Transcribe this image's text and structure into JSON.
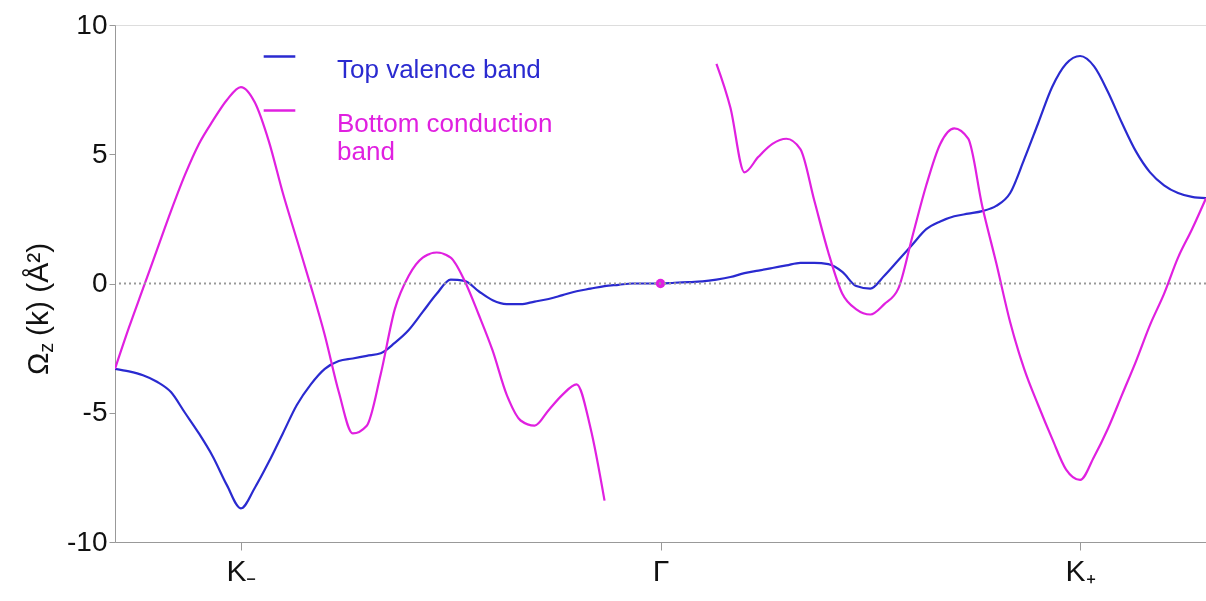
{
  "chart_data": {
    "type": "line",
    "ylabel": "Ω$_{z}$(k) (Å²)",
    "categories": [
      null,
      null,
      null,
      null,
      null,
      null,
      null,
      null,
      null,
      "K₋",
      null,
      null,
      null,
      null,
      null,
      null,
      null,
      null,
      null,
      null,
      null,
      null,
      null,
      null,
      null,
      null,
      null,
      null,
      null,
      null,
      null,
      null,
      null,
      null,
      null,
      null,
      null,
      null,
      null,
      "Γ",
      null,
      null,
      null,
      null,
      null,
      null,
      null,
      null,
      null,
      null,
      null,
      null,
      null,
      null,
      null,
      null,
      null,
      null,
      null,
      null,
      null,
      null,
      null,
      null,
      null,
      null,
      null,
      null,
      null,
      "K₊",
      null,
      null,
      null,
      null,
      null,
      null,
      null,
      null,
      null
    ],
    "ylim": [
      -10,
      10
    ],
    "yticks": [
      -10,
      -5,
      0,
      5,
      10
    ],
    "grid": false,
    "legend": "top left",
    "marker": "none",
    "line_style": "solid",
    "ref_lines": [
      {
        "axis": "y",
        "value": 0,
        "color": "#999999",
        "line_style": "dotted"
      }
    ],
    "series": [
      {
        "name": "Top valence band",
        "color": "#2a2ad0",
        "values": [
          -3.3,
          -3.4,
          -3.55,
          -3.8,
          -4.2,
          -5.0,
          -5.8,
          -6.7,
          -7.8,
          -8.7,
          -7.9,
          -6.9,
          -5.8,
          -4.7,
          -3.9,
          -3.3,
          -3.0,
          -2.9,
          -2.8,
          -2.7,
          -2.3,
          -1.8,
          -1.1,
          -0.4,
          0.15,
          0.1,
          -0.3,
          -0.65,
          -0.8,
          -0.8,
          -0.7,
          -0.6,
          -0.45,
          -0.3,
          -0.2,
          -0.1,
          -0.05,
          0,
          0,
          0,
          0.03,
          0.05,
          0.08,
          0.15,
          0.25,
          0.4,
          0.5,
          0.6,
          0.7,
          0.8,
          0.8,
          0.75,
          0.45,
          -0.1,
          -0.2,
          0.3,
          0.9,
          1.5,
          2.1,
          2.4,
          2.6,
          2.7,
          2.8,
          3.0,
          3.5,
          4.8,
          6.2,
          7.6,
          8.5,
          8.8,
          8.4,
          7.4,
          6.2,
          5.1,
          4.3,
          3.8,
          3.5,
          3.35,
          3.3
        ]
      },
      {
        "name": "Bottom conduction band",
        "color": "#e020e0",
        "values": [
          -3.3,
          -1.7,
          -0.2,
          1.3,
          2.8,
          4.2,
          5.4,
          6.3,
          7.1,
          7.6,
          7.0,
          5.5,
          3.5,
          1.7,
          -0.1,
          -2.0,
          -4.2,
          -5.8,
          -5.5,
          -3.5,
          -1.0,
          0.3,
          1.0,
          1.2,
          1.0,
          0.1,
          -1.2,
          -2.6,
          -4.3,
          -5.3,
          -5.5,
          -4.9,
          -4.3,
          -3.9,
          -5.6,
          -8.4,
          null,
          null,
          null,
          0,
          null,
          null,
          null,
          8.5,
          6.8,
          4.3,
          4.9,
          5.4,
          5.6,
          5.2,
          3.2,
          1.2,
          -0.4,
          -1.0,
          -1.2,
          -0.8,
          -0.2,
          1.8,
          3.8,
          5.4,
          6.0,
          5.6,
          3.0,
          0.8,
          -1.5,
          -3.3,
          -4.7,
          -6.0,
          -7.2,
          -7.6,
          -6.7,
          -5.6,
          -4.3,
          -3.0,
          -1.6,
          -0.4,
          1.0,
          2.1,
          3.3
        ]
      }
    ]
  }
}
